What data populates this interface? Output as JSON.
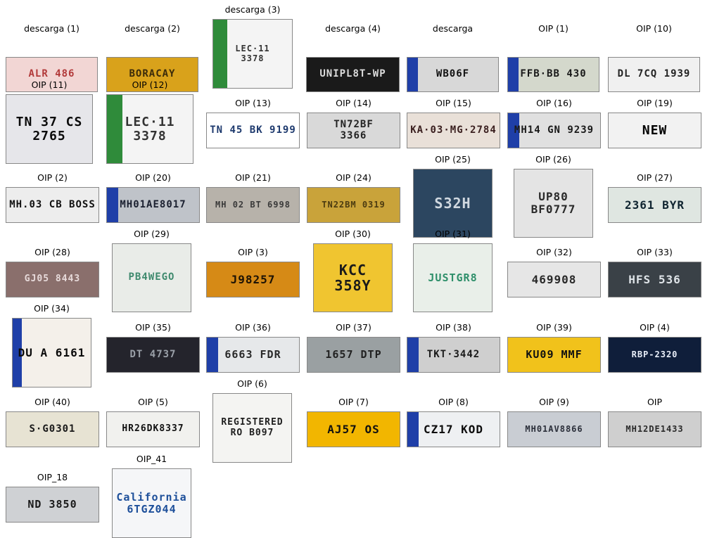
{
  "grid": [
    {
      "caption": "descarga (1)",
      "plate_text": "ALR 486",
      "bg": "#f2d6d4",
      "fg": "#b23a3a",
      "band": false
    },
    {
      "caption": "descarga (2)",
      "plate_text": "BORACAY",
      "bg": "#d9a21b",
      "fg": "#3b2b0a",
      "band": false
    },
    {
      "caption": "descarga (3)",
      "plate_text": "LEC·11\n3378",
      "bg": "#f4f4f4",
      "fg": "#333333",
      "band": false,
      "stripe": "#2f8b3a"
    },
    {
      "caption": "descarga (4)",
      "plate_text": "UNIPL8T-WP",
      "bg": "#1a1a1a",
      "fg": "#dcdcdc",
      "band": false
    },
    {
      "caption": "descarga",
      "plate_text": "WB06F",
      "bg": "#d8d8d8",
      "fg": "#111111",
      "band": true
    },
    {
      "caption": "OIP (1)",
      "plate_text": "FFB·BB 430",
      "bg": "#d4d8cc",
      "fg": "#1a1a1a",
      "band": true
    },
    {
      "caption": "OIP (10)",
      "plate_text": "DL 7CQ 1939",
      "bg": "#f0f0f0",
      "fg": "#222222",
      "band": false
    },
    {
      "caption": "OIP (11)",
      "plate_text": "TN 37 CS\n2765",
      "bg": "#e6e6ea",
      "fg": "#0a0a0a",
      "band": false
    },
    {
      "caption": "OIP (12)",
      "plate_text": "LEC·11\n3378",
      "bg": "#f4f4f4",
      "fg": "#333333",
      "band": false,
      "stripe": "#2f8b3a"
    },
    {
      "caption": "OIP (13)",
      "plate_text": "TN 45 BK 9199",
      "bg": "#ffffff",
      "fg": "#1e3a6e",
      "band": false
    },
    {
      "caption": "OIP (14)",
      "plate_text": "TN72BF\n3366",
      "bg": "#d9d9d9",
      "fg": "#222222",
      "band": false
    },
    {
      "caption": "OIP (15)",
      "plate_text": "KA·03·MG·2784",
      "bg": "#e9e0d8",
      "fg": "#3a1f1f",
      "band": false
    },
    {
      "caption": "OIP (16)",
      "plate_text": "MH14 GN 9239",
      "bg": "#e0e0e0",
      "fg": "#1a1a1a",
      "band": true
    },
    {
      "caption": "OIP (19)",
      "plate_text": "NEW",
      "bg": "#f2f2f2",
      "fg": "#000000",
      "band": false
    },
    {
      "caption": "OIP (2)",
      "plate_text": "MH.03 CB BOSS",
      "bg": "#ededed",
      "fg": "#111111",
      "band": false
    },
    {
      "caption": "OIP (20)",
      "plate_text": "MH01AE8017",
      "bg": "#bfc3c9",
      "fg": "#1b2030",
      "band": true
    },
    {
      "caption": "OIP (21)",
      "plate_text": "MH 02 BT 6998",
      "bg": "#b7b2aa",
      "fg": "#3a3a3a",
      "band": false
    },
    {
      "caption": "OIP (24)",
      "plate_text": "TN22BM 0319",
      "bg": "#c9a33a",
      "fg": "#4a3a10",
      "band": false
    },
    {
      "caption": "OIP (25)",
      "plate_text": "S32H",
      "bg": "#2c4660",
      "fg": "#d0d8e0",
      "band": false
    },
    {
      "caption": "OIP (26)",
      "plate_text": "UP80\nBF0777",
      "bg": "#e4e4e4",
      "fg": "#2a2a2a",
      "band": false
    },
    {
      "caption": "OIP (27)",
      "plate_text": "2361 BYR",
      "bg": "#dfe6e1",
      "fg": "#0f2430",
      "band": false
    },
    {
      "caption": "OIP (28)",
      "plate_text": "GJ05 8443",
      "bg": "#8a6f6c",
      "fg": "#e7dada",
      "band": false
    },
    {
      "caption": "OIP (29)",
      "plate_text": "PB4WEGO",
      "bg": "#e9ece8",
      "fg": "#3f8a6e",
      "band": false
    },
    {
      "caption": "OIP (3)",
      "plate_text": "J98257",
      "bg": "#d68a16",
      "fg": "#1d1305",
      "band": false
    },
    {
      "caption": "OIP (30)",
      "plate_text": "KCC\n358Y",
      "bg": "#f0c530",
      "fg": "#1a1a1a",
      "band": false
    },
    {
      "caption": "OIP (31)",
      "plate_text": "JUSTGR8",
      "bg": "#e9efe9",
      "fg": "#2e8f6a",
      "band": false
    },
    {
      "caption": "OIP (32)",
      "plate_text": "469908",
      "bg": "#e6e6e6",
      "fg": "#2a2a2a",
      "band": false
    },
    {
      "caption": "OIP (33)",
      "plate_text": "HFS 536",
      "bg": "#3a4147",
      "fg": "#dfe4e8",
      "band": false
    },
    {
      "caption": "OIP (34)",
      "plate_text": "DU A 6161",
      "bg": "#f4f0ea",
      "fg": "#0a0a0a",
      "band": true
    },
    {
      "caption": "OIP (35)",
      "plate_text": "DT 4737",
      "bg": "#24242c",
      "fg": "#9aa0a8",
      "band": false
    },
    {
      "caption": "OIP (36)",
      "plate_text": "6663 FDR",
      "bg": "#e6e8ea",
      "fg": "#2a2a2a",
      "band": true
    },
    {
      "caption": "OIP (37)",
      "plate_text": "1657 DTP",
      "bg": "#9aa0a2",
      "fg": "#222222",
      "band": false
    },
    {
      "caption": "OIP (38)",
      "plate_text": "TKT·3442",
      "bg": "#cfcfcf",
      "fg": "#1a1a1a",
      "band": true
    },
    {
      "caption": "OIP (39)",
      "plate_text": "KU09 MMF",
      "bg": "#f1c21b",
      "fg": "#111111",
      "band": false
    },
    {
      "caption": "OIP (4)",
      "plate_text": "RBP-2320",
      "bg": "#0f1e3a",
      "fg": "#e8eef8",
      "band": false
    },
    {
      "caption": "OIP (40)",
      "plate_text": "S·G0301",
      "bg": "#e7e3d3",
      "fg": "#1a1a1a",
      "band": false
    },
    {
      "caption": "OIP (5)",
      "plate_text": "HR26DK8337",
      "bg": "#f1f1ee",
      "fg": "#111111",
      "band": false
    },
    {
      "caption": "OIP (6)",
      "plate_text": "REGISTERED\nRO B097",
      "bg": "#f4f4f2",
      "fg": "#1f1f1f",
      "band": false
    },
    {
      "caption": "OIP (7)",
      "plate_text": "AJ57 OS",
      "bg": "#f2b600",
      "fg": "#111111",
      "band": false
    },
    {
      "caption": "OIP (8)",
      "plate_text": "CZ17 KOD",
      "bg": "#eef0f2",
      "fg": "#0d0d0d",
      "band": true
    },
    {
      "caption": "OIP (9)",
      "plate_text": "MH01AV8866",
      "bg": "#c9cdd3",
      "fg": "#2b2f3a",
      "band": false
    },
    {
      "caption": "OIP",
      "plate_text": "MH12DE1433",
      "bg": "#cfcfcf",
      "fg": "#2a2a2a",
      "band": false
    },
    {
      "caption": "OIP_18",
      "plate_text": "ND 3850",
      "bg": "#cfd1d4",
      "fg": "#1a1a1a",
      "band": false
    },
    {
      "caption": "OIP_41",
      "plate_text": "California\n6TGZ044",
      "bg": "#f5f6f8",
      "fg": "#1d4f9a",
      "band": false
    }
  ]
}
